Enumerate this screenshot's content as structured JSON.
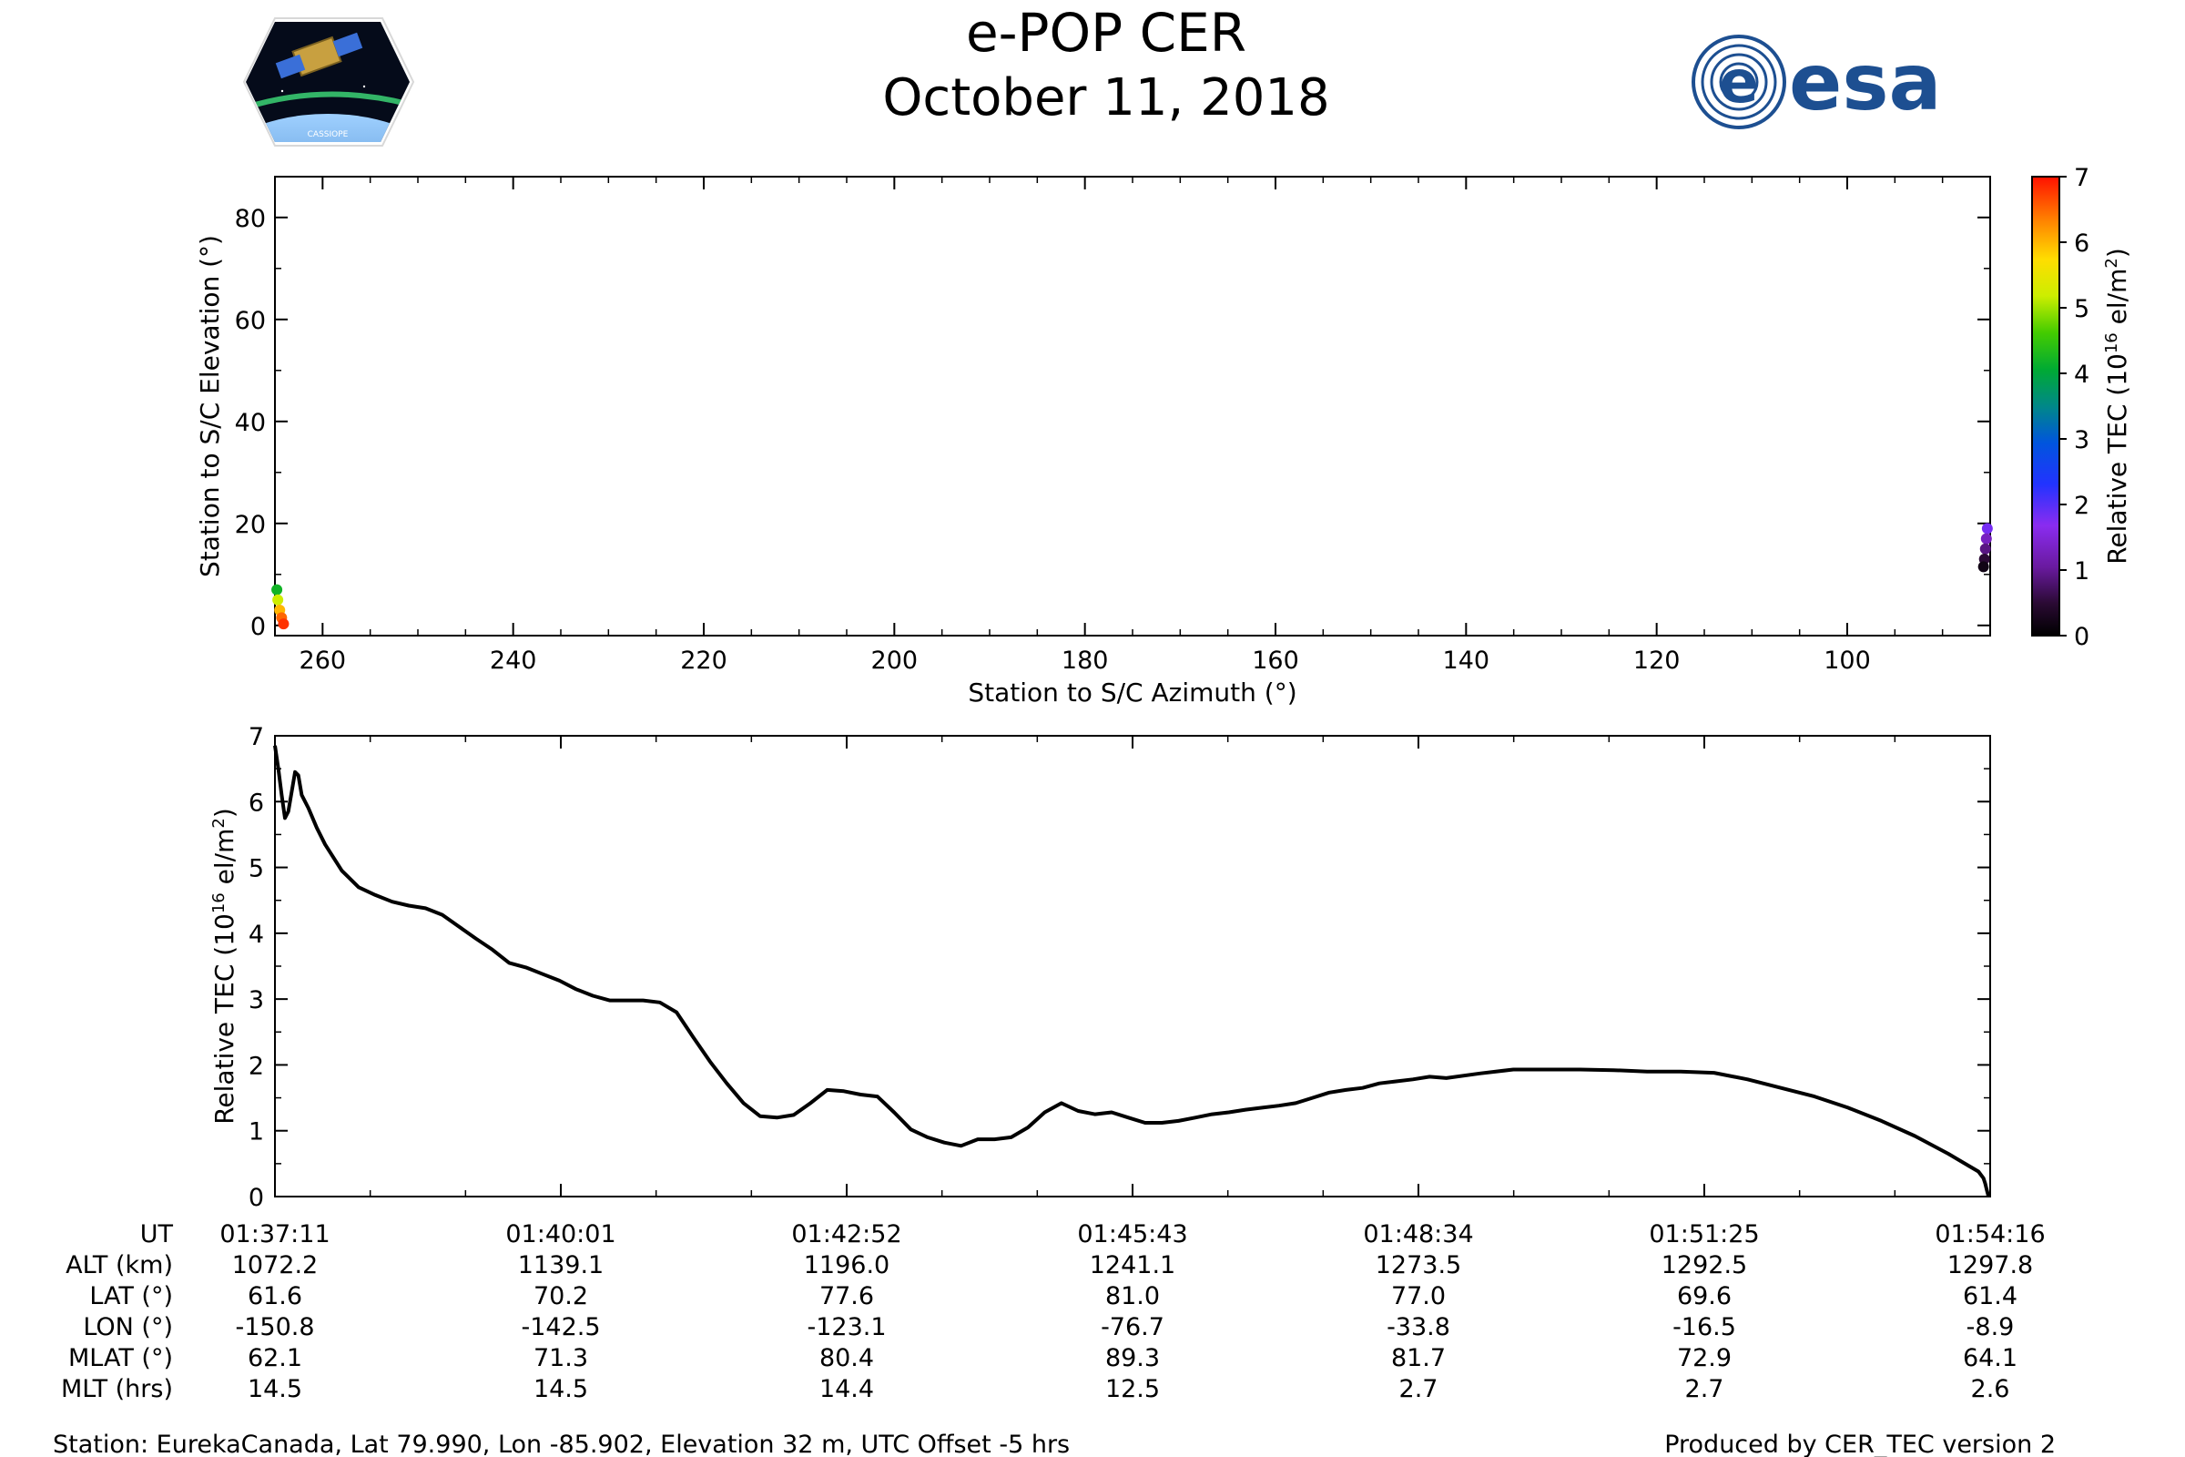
{
  "header": {
    "title": "e-POP CER",
    "date": "October 11, 2018",
    "logo_left_label": "CASSIOPE",
    "logo_right_label": "esa"
  },
  "footer": {
    "station": "Station: EurekaCanada, Lat 79.990, Lon -85.902, Elevation 32 m, UTC Offset -5 hrs",
    "producer": "Produced by CER_TEC version 2"
  },
  "orbit_table": {
    "row_labels": [
      "UT",
      "ALT (km)",
      "LAT (°)",
      "LON (°)",
      "MLAT (°)",
      "MLT (hrs)"
    ],
    "columns": [
      [
        "01:37:11",
        "1072.2",
        "61.6",
        "-150.8",
        "62.1",
        "14.5"
      ],
      [
        "01:40:01",
        "1139.1",
        "70.2",
        "-142.5",
        "71.3",
        "14.5"
      ],
      [
        "01:42:52",
        "1196.0",
        "77.6",
        "-123.1",
        "80.4",
        "14.4"
      ],
      [
        "01:45:43",
        "1241.1",
        "81.0",
        "-76.7",
        "89.3",
        "12.5"
      ],
      [
        "01:48:34",
        "1273.5",
        "77.0",
        "-33.8",
        "81.7",
        "2.7"
      ],
      [
        "01:51:25",
        "1292.5",
        "69.6",
        "-16.5",
        "72.9",
        "2.7"
      ],
      [
        "01:54:16",
        "1297.8",
        "61.4",
        "-8.9",
        "64.1",
        "2.6"
      ]
    ]
  },
  "chart_data": [
    {
      "type": "scatter",
      "title": "",
      "xlabel": "Station to S/C Azimuth (°)",
      "ylabel": "Station to S/C Elevation (°)",
      "xlim": [
        265,
        85
      ],
      "ylim": [
        -2,
        88
      ],
      "xticks": [
        260,
        240,
        220,
        200,
        180,
        160,
        140,
        120,
        100
      ],
      "yticks": [
        0,
        20,
        40,
        60,
        80
      ],
      "colorbar": {
        "label": "Relative TEC (10^16 el/m^2)",
        "label_main": "Relative TEC (10",
        "label_exp": "16",
        "label_unit": " el/m",
        "label_unit_exp": "2",
        "label_close": ")",
        "range": [
          0,
          7
        ],
        "ticks": [
          0,
          1,
          2,
          3,
          4,
          5,
          6,
          7
        ]
      },
      "series": [
        {
          "points": [
            {
              "az": 264.8,
              "el": 7.0,
              "tec": 4.2
            },
            {
              "az": 264.7,
              "el": 5.0,
              "tec": 5.2
            },
            {
              "az": 264.5,
              "el": 3.0,
              "tec": 6.0
            },
            {
              "az": 264.3,
              "el": 1.5,
              "tec": 6.5
            },
            {
              "az": 264.1,
              "el": 0.3,
              "tec": 6.8
            },
            {
              "az": 85.3,
              "el": 19.0,
              "tec": 1.8
            },
            {
              "az": 85.4,
              "el": 17.0,
              "tec": 1.3
            },
            {
              "az": 85.5,
              "el": 15.0,
              "tec": 0.9
            },
            {
              "az": 85.6,
              "el": 13.0,
              "tec": 0.5
            },
            {
              "az": 85.7,
              "el": 11.5,
              "tec": 0.2
            }
          ]
        }
      ]
    },
    {
      "type": "line",
      "title": "",
      "xlabel": "",
      "ylabel": "Relative TEC (10^16 el/m^2)",
      "ylabel_main": "Relative TEC (10",
      "ylabel_exp": "16",
      "ylabel_unit": " el/m",
      "ylabel_unit_exp": "2",
      "ylabel_close": ")",
      "xlim_seconds_from_first_tick": [
        0,
        1025
      ],
      "ylim": [
        0,
        7
      ],
      "yticks": [
        0,
        1,
        2,
        3,
        4,
        5,
        6,
        7
      ],
      "xtick_labels": [
        "01:37:11",
        "01:40:01",
        "01:42:52",
        "01:45:43",
        "01:48:34",
        "01:51:25",
        "01:54:16"
      ],
      "series": [
        {
          "x": [
            0,
            2,
            4,
            6,
            8,
            10,
            12,
            14,
            16,
            20,
            25,
            30,
            40,
            50,
            60,
            70,
            80,
            90,
            100,
            110,
            120,
            130,
            140,
            150,
            160,
            170,
            180,
            190,
            200,
            210,
            220,
            230,
            240,
            250,
            260,
            270,
            280,
            290,
            300,
            310,
            320,
            330,
            340,
            350,
            360,
            370,
            380,
            390,
            400,
            410,
            420,
            430,
            440,
            450,
            460,
            470,
            480,
            490,
            500,
            510,
            520,
            530,
            540,
            550,
            560,
            570,
            580,
            590,
            600,
            610,
            620,
            630,
            640,
            650,
            660,
            670,
            680,
            690,
            700,
            720,
            740,
            760,
            780,
            800,
            820,
            840,
            860,
            880,
            900,
            920,
            940,
            960,
            980,
            1000,
            1010,
            1018,
            1021,
            1022,
            1023,
            1024
          ],
          "y": [
            6.85,
            6.5,
            6.1,
            5.75,
            5.85,
            6.15,
            6.45,
            6.4,
            6.1,
            5.9,
            5.6,
            5.35,
            4.95,
            4.7,
            4.58,
            4.48,
            4.42,
            4.38,
            4.28,
            4.1,
            3.92,
            3.75,
            3.55,
            3.48,
            3.38,
            3.28,
            3.15,
            3.05,
            2.98,
            2.98,
            2.98,
            2.95,
            2.8,
            2.42,
            2.05,
            1.72,
            1.42,
            1.22,
            1.2,
            1.24,
            1.42,
            1.62,
            1.6,
            1.55,
            1.52,
            1.28,
            1.02,
            0.9,
            0.82,
            0.77,
            0.87,
            0.87,
            0.9,
            1.05,
            1.28,
            1.42,
            1.3,
            1.25,
            1.28,
            1.2,
            1.12,
            1.12,
            1.15,
            1.2,
            1.25,
            1.28,
            1.32,
            1.35,
            1.38,
            1.42,
            1.5,
            1.58,
            1.62,
            1.65,
            1.72,
            1.75,
            1.78,
            1.82,
            1.8,
            1.87,
            1.93,
            1.93,
            1.93,
            1.92,
            1.9,
            1.9,
            1.88,
            1.78,
            1.65,
            1.52,
            1.35,
            1.15,
            0.92,
            0.65,
            0.5,
            0.38,
            0.28,
            0.2,
            0.1,
            0.0
          ]
        }
      ]
    }
  ]
}
